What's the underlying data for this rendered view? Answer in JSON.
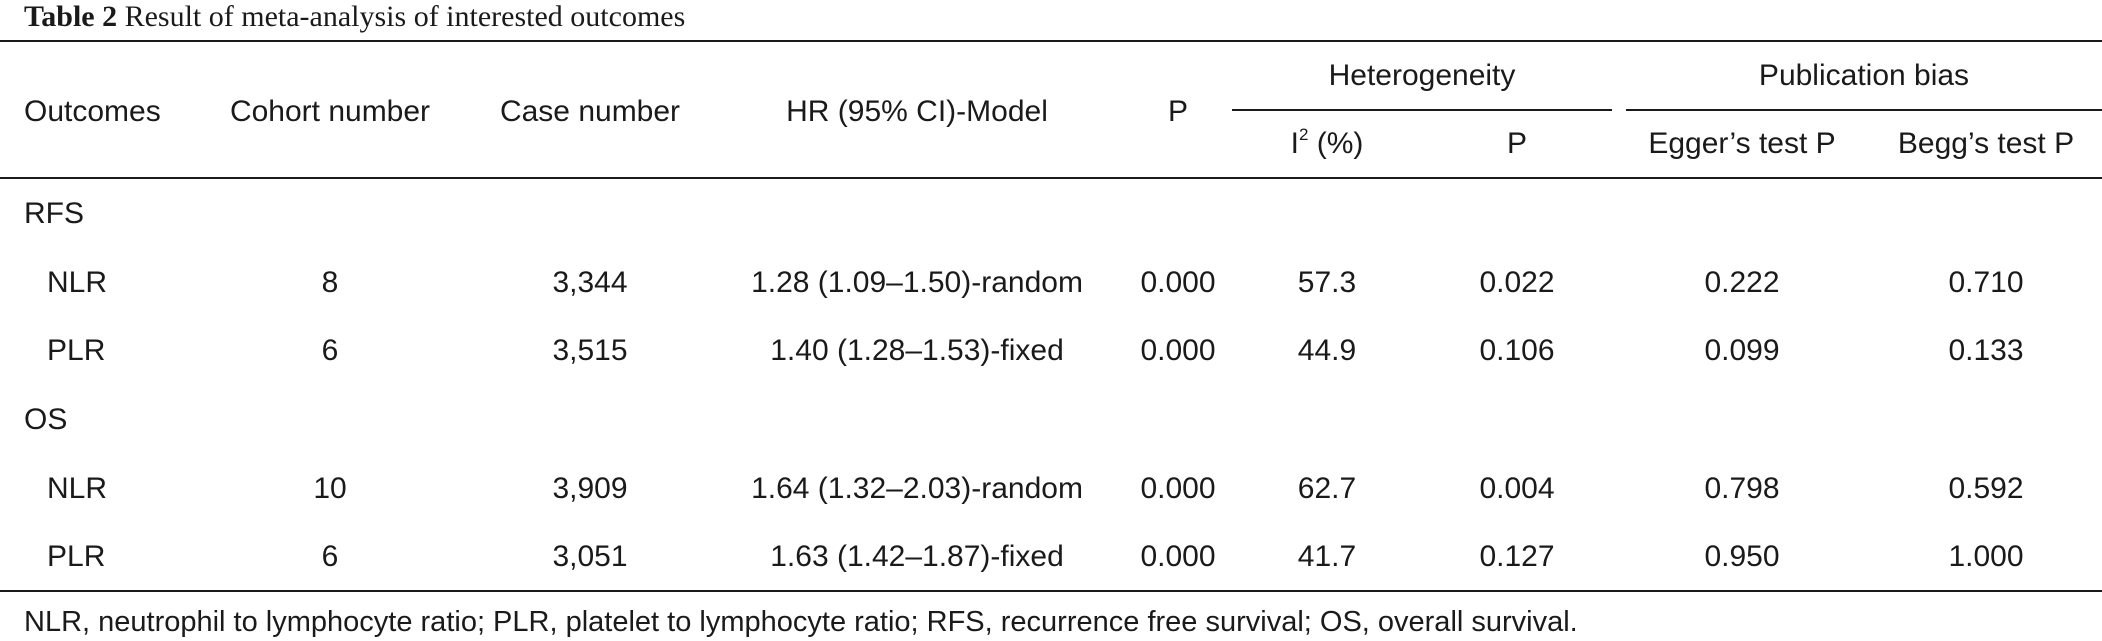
{
  "caption": {
    "label": "Table 2",
    "text": "Result of meta-analysis of interested outcomes"
  },
  "header": {
    "outcomes": "Outcomes",
    "cohort_number": "Cohort number",
    "case_number": "Case number",
    "hr_model": "HR (95% CI)-Model",
    "p": "P",
    "heterogeneity": "Heterogeneity",
    "i2_base": "I",
    "i2_sup": "2",
    "i2_unit": "(%)",
    "het_p": "P",
    "publication_bias": "Publication bias",
    "egger": "Egger’s test P",
    "begg": "Begg’s test P"
  },
  "groups": [
    {
      "name": "RFS",
      "rows": [
        {
          "outcome": "NLR",
          "cohort": "8",
          "cases": "3,344",
          "hr": "1.28 (1.09–1.50)-random",
          "p": "0.000",
          "i2": "57.3",
          "het_p": "0.022",
          "egger": "0.222",
          "begg": "0.710"
        },
        {
          "outcome": "PLR",
          "cohort": "6",
          "cases": "3,515",
          "hr": "1.40 (1.28–1.53)-fixed",
          "p": "0.000",
          "i2": "44.9",
          "het_p": "0.106",
          "egger": "0.099",
          "begg": "0.133"
        }
      ]
    },
    {
      "name": "OS",
      "rows": [
        {
          "outcome": "NLR",
          "cohort": "10",
          "cases": "3,909",
          "hr": "1.64 (1.32–2.03)-random",
          "p": "0.000",
          "i2": "62.7",
          "het_p": "0.004",
          "egger": "0.798",
          "begg": "0.592"
        },
        {
          "outcome": "PLR",
          "cohort": "6",
          "cases": "3,051",
          "hr": "1.63 (1.42–1.87)-fixed",
          "p": "0.000",
          "i2": "41.7",
          "het_p": "0.127",
          "egger": "0.950",
          "begg": "1.000"
        }
      ]
    }
  ],
  "footnote": "NLR, neutrophil to lymphocyte ratio; PLR, platelet to lymphocyte ratio; RFS, recurrence free survival; OS, overall survival."
}
